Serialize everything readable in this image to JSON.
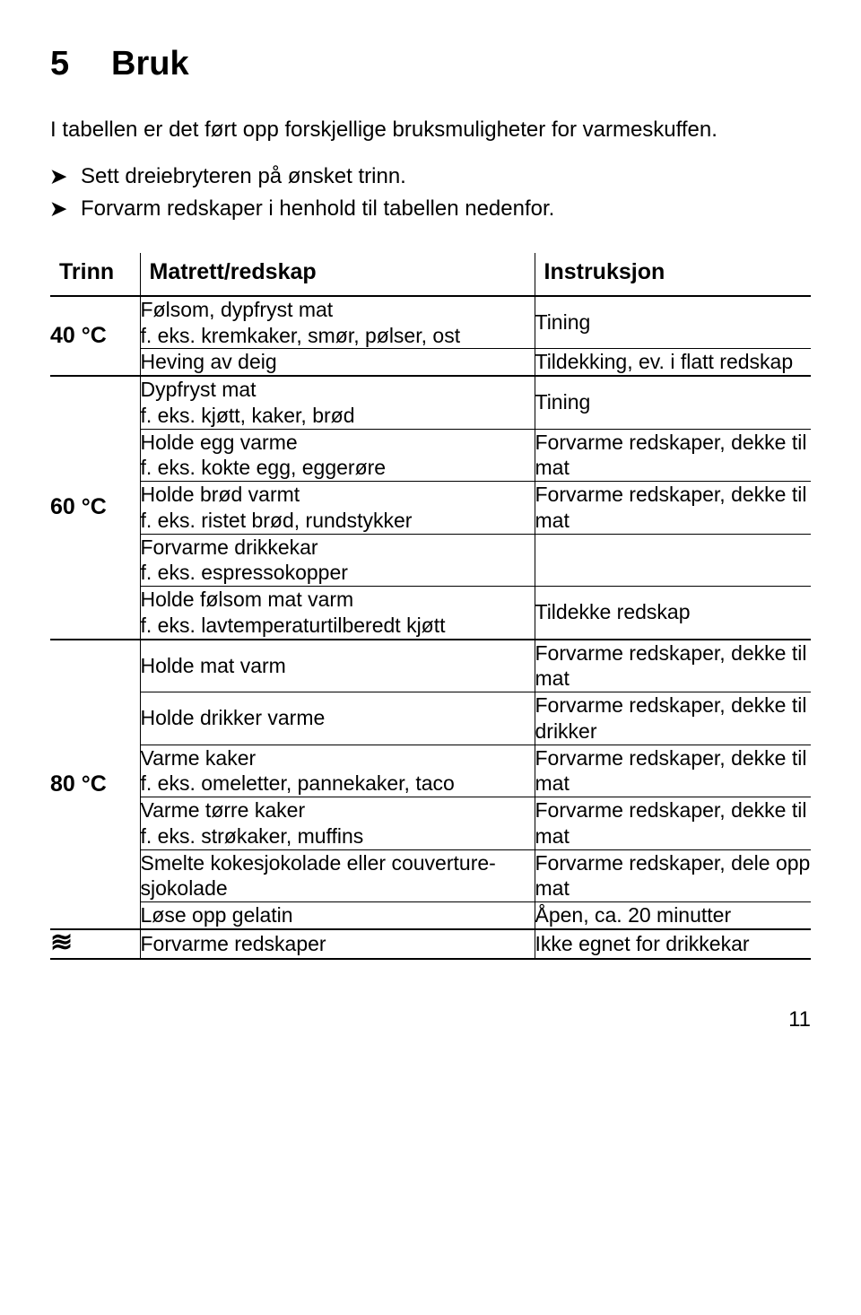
{
  "heading_number": "5",
  "heading_title": "Bruk",
  "intro": "I tabellen er det ført opp forskjellige bruksmuligheter for varmeskuffen.",
  "bullets": [
    "Sett dreiebryteren på ønsket trinn.",
    "Forvarm redskaper i henhold til tabellen nedenfor."
  ],
  "table": {
    "headers": {
      "trinn": "Trinn",
      "matrett": "Matrett/redskap",
      "instruksjon": "Instruksjon"
    },
    "groups": [
      {
        "trinn": "40 °C",
        "rows": [
          {
            "mat": "Følsom, dypfryst mat\nf. eks. kremkaker, smør, pølser, ost",
            "inst": "Tining"
          },
          {
            "mat": "Heving av deig",
            "inst": "Tildekking, ev. i flatt redskap"
          }
        ]
      },
      {
        "trinn": "60 °C",
        "rows": [
          {
            "mat": "Dypfryst mat\nf. eks. kjøtt, kaker, brød",
            "inst": "Tining"
          },
          {
            "mat": "Holde egg varme\nf. eks. kokte egg, eggerøre",
            "inst": "Forvarme redskaper, dekke til mat"
          },
          {
            "mat": "Holde brød varmt\nf. eks. ristet brød, rundstykker",
            "inst": "Forvarme redskaper, dekke til mat"
          },
          {
            "mat": "Forvarme drikkekar\nf. eks. espressokopper",
            "inst": ""
          },
          {
            "mat": "Holde følsom mat varm\nf. eks. lavtemperaturtilberedt kjøtt",
            "inst": "Tildekke redskap"
          }
        ]
      },
      {
        "trinn": "80 °C",
        "rows": [
          {
            "mat": "Holde mat varm",
            "inst": "Forvarme redskaper, dekke til mat"
          },
          {
            "mat": "Holde drikker varme",
            "inst": "Forvarme redskaper, dekke til drikker"
          },
          {
            "mat": "Varme kaker\nf. eks. omeletter, pannekaker, taco",
            "inst": "Forvarme redskaper, dekke til mat"
          },
          {
            "mat": "Varme tørre kaker\nf. eks. strøkaker, muffins",
            "inst": "Forvarme redskaper, dekke til mat"
          },
          {
            "mat": "Smelte kokesjokolade eller couverture-sjokolade",
            "inst": "Forvarme redskaper, dele opp mat"
          },
          {
            "mat": "Løse opp gelatin",
            "inst": "Åpen, ca. 20 minutter"
          }
        ]
      },
      {
        "trinn_icon": "wave",
        "rows": [
          {
            "mat": "Forvarme redskaper",
            "inst": "Ikke egnet for drikkekar"
          }
        ]
      }
    ]
  },
  "page_number": "11"
}
